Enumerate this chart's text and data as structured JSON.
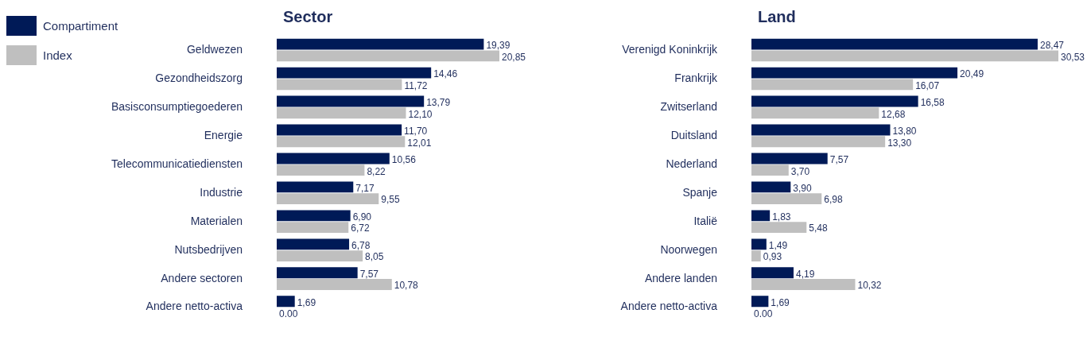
{
  "chart_data": [
    {
      "type": "bar",
      "orientation": "horizontal",
      "title": "Sector",
      "legend": "top left",
      "tick_labels": "y",
      "data_labels": true,
      "categories": [
        "Geldwezen",
        "Gezondheidszorg",
        "Basisconsumptiegoederen",
        "Energie",
        "Telecommunicatiediensten",
        "Industrie",
        "Materialen",
        "Nutsbedrijven",
        "Andere sectoren",
        "Andere netto-activa"
      ],
      "series": [
        {
          "name": "Compartiment",
          "color": "#001a57",
          "values": [
            19.39,
            14.46,
            13.79,
            11.7,
            10.56,
            7.17,
            6.9,
            6.78,
            7.57,
            1.69
          ],
          "value_labels": [
            "19,39",
            "14,46",
            "13,79",
            "11,70",
            "10,56",
            "7,17",
            "6,90",
            "6,78",
            "7,57",
            "1,69"
          ]
        },
        {
          "name": "Index",
          "color": "#bfbfbf",
          "values": [
            20.85,
            11.72,
            12.1,
            12.01,
            8.22,
            9.55,
            6.72,
            8.05,
            10.78,
            0.0
          ],
          "value_labels": [
            "20,85",
            "11,72",
            "12,10",
            "12,01",
            "8,22",
            "9,55",
            "6,72",
            "8,05",
            "10,78",
            "0.00"
          ]
        }
      ]
    },
    {
      "type": "bar",
      "orientation": "horizontal",
      "title": "Land",
      "tick_labels": "y",
      "data_labels": true,
      "categories": [
        "Verenigd Koninkrijk",
        "Frankrijk",
        "Zwitserland",
        "Duitsland",
        "Nederland",
        "Spanje",
        "Italië",
        "Noorwegen",
        "Andere landen",
        "Andere netto-activa"
      ],
      "series": [
        {
          "color": "#001a57",
          "values": [
            28.47,
            20.49,
            16.58,
            13.8,
            7.57,
            3.9,
            1.83,
            1.49,
            4.19,
            1.69
          ],
          "value_labels": [
            "28,47",
            "20,49",
            "16,58",
            "13,80",
            "7,57",
            "3,90",
            "1,83",
            "1,49",
            "4,19",
            "1,69"
          ]
        },
        {
          "color": "#bfbfbf",
          "values": [
            30.53,
            16.07,
            12.68,
            13.3,
            3.7,
            6.98,
            5.48,
            0.93,
            10.32,
            0.0
          ],
          "value_labels": [
            "30,53",
            "16,07",
            "12,68",
            "13,30",
            "3,70",
            "6,98",
            "5,48",
            "0,93",
            "10,32",
            "0.00"
          ]
        }
      ]
    }
  ]
}
